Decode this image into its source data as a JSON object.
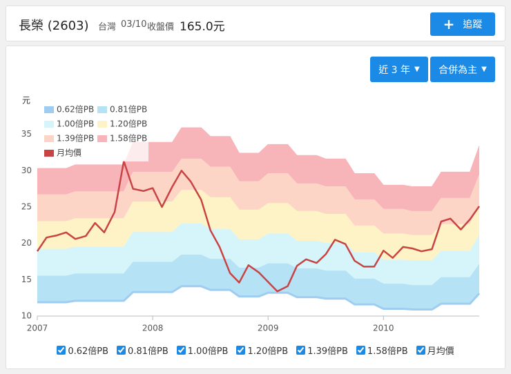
{
  "header": {
    "name": "長榮 (2603)",
    "market": "台灣",
    "date": "03/10",
    "price_label": "收盤價",
    "price": "165.0元",
    "follow_button": "追蹤"
  },
  "controls": {
    "range": "近 3 年",
    "basis": "合併為主"
  },
  "chart_data": {
    "type": "pb-band",
    "y_label": "元",
    "legend": "top-left",
    "xlim": [
      2007,
      2010.83
    ],
    "xticks": [
      2007,
      2008,
      2009,
      2010
    ],
    "ylim": [
      10,
      38
    ],
    "yticks": [
      10,
      15,
      20,
      25,
      30,
      35
    ],
    "x": [
      2007,
      2007.08,
      2007.17,
      2007.25,
      2007.33,
      2007.42,
      2007.5,
      2007.58,
      2007.67,
      2007.75,
      2007.83,
      2007.92,
      2008,
      2008.08,
      2008.17,
      2008.25,
      2008.33,
      2008.42,
      2008.5,
      2008.58,
      2008.67,
      2008.75,
      2008.83,
      2008.92,
      2009,
      2009.08,
      2009.17,
      2009.25,
      2009.33,
      2009.42,
      2009.5,
      2009.58,
      2009.67,
      2009.75,
      2009.83,
      2009.92,
      2010,
      2010.08,
      2010.17,
      2010.25,
      2010.33,
      2010.42,
      2010.5,
      2010.58,
      2010.67,
      2010.75,
      2010.83
    ],
    "series": [
      {
        "name": "0.62倍PB",
        "color": "#9fcdf2",
        "kind": "band",
        "values": [
          11.9,
          11.9,
          11.9,
          11.9,
          12.1,
          12.1,
          12.1,
          12.1,
          12.1,
          12.1,
          13.3,
          13.3,
          13.3,
          13.3,
          13.3,
          14.1,
          14.1,
          14.1,
          13.6,
          13.6,
          13.6,
          12.7,
          12.7,
          12.7,
          13.2,
          13.2,
          13.2,
          12.6,
          12.6,
          12.6,
          12.4,
          12.4,
          12.4,
          11.6,
          11.6,
          11.6,
          11.0,
          11.0,
          11.0,
          10.9,
          10.9,
          10.9,
          11.7,
          11.7,
          11.7,
          11.7,
          13.1
        ]
      },
      {
        "name": "0.81倍PB",
        "color": "#b6e2f5",
        "kind": "band",
        "values": [
          15.5,
          15.5,
          15.5,
          15.5,
          15.8,
          15.8,
          15.8,
          15.8,
          15.8,
          15.8,
          17.4,
          17.4,
          17.4,
          17.4,
          17.4,
          18.4,
          18.4,
          18.4,
          17.8,
          17.8,
          17.8,
          16.6,
          16.6,
          16.6,
          17.2,
          17.2,
          17.2,
          16.5,
          16.5,
          16.5,
          16.2,
          16.2,
          16.2,
          15.1,
          15.1,
          15.1,
          14.4,
          14.4,
          14.4,
          14.2,
          14.2,
          14.2,
          15.3,
          15.3,
          15.3,
          15.3,
          17.1
        ]
      },
      {
        "name": "1.00倍PB",
        "color": "#d6f5fa",
        "kind": "band",
        "values": [
          19.2,
          19.2,
          19.2,
          19.2,
          19.5,
          19.5,
          19.5,
          19.5,
          19.5,
          19.5,
          21.5,
          21.5,
          21.5,
          21.5,
          21.5,
          22.7,
          22.7,
          22.7,
          21.9,
          21.9,
          21.9,
          20.5,
          20.5,
          20.5,
          21.3,
          21.3,
          21.3,
          20.3,
          20.3,
          20.3,
          20.0,
          20.0,
          20.0,
          18.7,
          18.7,
          18.7,
          17.7,
          17.7,
          17.7,
          17.6,
          17.6,
          17.6,
          18.9,
          18.9,
          18.9,
          18.9,
          21.1
        ]
      },
      {
        "name": "1.20倍PB",
        "color": "#fdf3c6",
        "kind": "band",
        "values": [
          23.0,
          23.0,
          23.0,
          23.0,
          23.4,
          23.4,
          23.4,
          23.4,
          23.4,
          23.4,
          25.7,
          25.7,
          25.7,
          25.7,
          25.7,
          27.3,
          27.3,
          27.3,
          26.3,
          26.3,
          26.3,
          24.6,
          24.6,
          24.6,
          25.5,
          25.5,
          25.5,
          24.4,
          24.4,
          24.4,
          24.0,
          24.0,
          24.0,
          22.4,
          22.4,
          22.4,
          21.3,
          21.3,
          21.3,
          21.1,
          21.1,
          21.1,
          22.6,
          22.6,
          22.6,
          22.6,
          25.3
        ]
      },
      {
        "name": "1.39倍PB",
        "color": "#fdd5c6",
        "kind": "band",
        "values": [
          26.7,
          26.7,
          26.7,
          26.7,
          27.1,
          27.1,
          27.1,
          27.1,
          27.1,
          27.1,
          29.8,
          29.8,
          29.8,
          29.8,
          29.8,
          31.6,
          31.6,
          31.6,
          30.5,
          30.5,
          30.5,
          28.5,
          28.5,
          28.5,
          29.6,
          29.6,
          29.6,
          28.2,
          28.2,
          28.2,
          27.8,
          27.8,
          27.8,
          26.0,
          26.0,
          26.0,
          24.7,
          24.7,
          24.7,
          24.4,
          24.4,
          24.4,
          26.2,
          26.2,
          26.2,
          26.2,
          29.4
        ]
      },
      {
        "name": "1.58倍PB",
        "color": "#f7b4b9",
        "kind": "band",
        "values": [
          30.3,
          30.3,
          30.3,
          30.3,
          30.8,
          30.8,
          30.8,
          30.8,
          30.8,
          30.8,
          33.9,
          33.9,
          33.9,
          33.9,
          33.9,
          35.9,
          35.9,
          35.9,
          34.7,
          34.7,
          34.7,
          32.4,
          32.4,
          32.4,
          33.6,
          33.6,
          33.6,
          32.1,
          32.1,
          32.1,
          31.6,
          31.6,
          31.6,
          29.6,
          29.6,
          29.6,
          28.0,
          28.0,
          28.0,
          27.8,
          27.8,
          27.8,
          29.8,
          29.8,
          29.8,
          29.8,
          33.4
        ]
      },
      {
        "name": "月均價",
        "color": "#c84343",
        "kind": "line",
        "values": [
          18.9,
          20.8,
          21.1,
          21.5,
          20.6,
          21.0,
          22.8,
          21.5,
          24.3,
          31.3,
          27.5,
          27.2,
          27.6,
          25.0,
          27.8,
          30.0,
          28.5,
          26.0,
          21.8,
          19.5,
          15.9,
          14.6,
          17.0,
          16.0,
          14.7,
          13.4,
          14.1,
          16.9,
          17.8,
          17.3,
          18.5,
          20.5,
          19.9,
          17.6,
          16.8,
          16.8,
          19.0,
          18.0,
          19.5,
          19.3,
          18.9,
          19.2,
          23.0,
          23.4,
          21.9,
          23.3,
          25.1
        ]
      }
    ]
  }
}
